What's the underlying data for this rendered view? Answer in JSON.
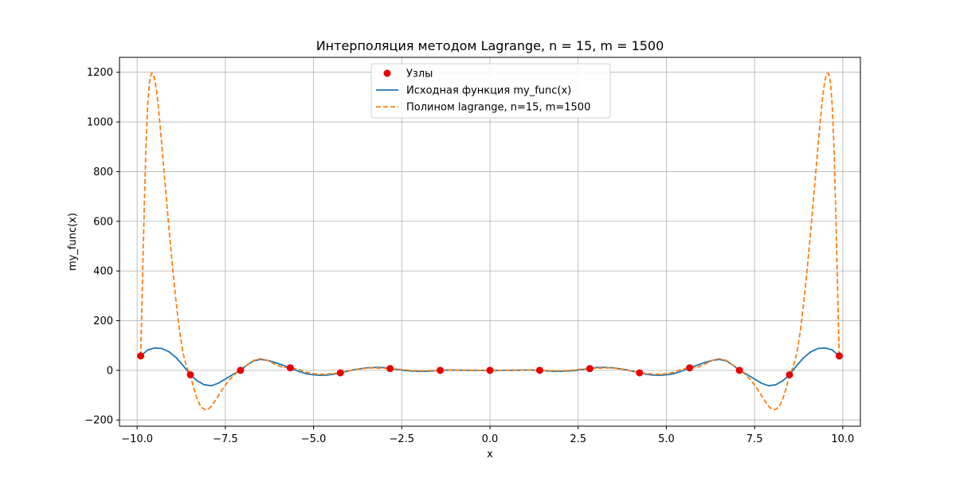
{
  "chart_data": {
    "type": "line",
    "title": "Интерполяция методом Lagrange, n = 15, m = 1500",
    "xlabel": "x",
    "ylabel": "my_func(x)",
    "xlim": [
      -10.5,
      10.5
    ],
    "ylim": [
      -225,
      1260
    ],
    "xticks": [
      -10.0,
      -7.5,
      -5.0,
      -2.5,
      0.0,
      2.5,
      5.0,
      7.5,
      10.0
    ],
    "xtick_labels": [
      "−10.0",
      "−7.5",
      "−5.0",
      "−2.5",
      "0.0",
      "2.5",
      "5.0",
      "7.5",
      "10.0"
    ],
    "yticks": [
      -200,
      0,
      200,
      400,
      600,
      800,
      1000,
      1200
    ],
    "ytick_labels": [
      "−200",
      "0",
      "200",
      "400",
      "600",
      "800",
      "1000",
      "1200"
    ],
    "grid": true,
    "legend_position": "top-center",
    "series": [
      {
        "name": "Узлы",
        "style": "markers",
        "color": "#e60000",
        "x": [
          -9.9,
          -8.49,
          -7.07,
          -5.66,
          -4.24,
          -2.83,
          -1.41,
          0.0,
          1.41,
          2.83,
          4.24,
          5.66,
          7.07,
          8.49,
          9.9
        ],
        "y": [
          58,
          -18,
          0,
          10,
          -10,
          7,
          0,
          0,
          0,
          7,
          -10,
          10,
          0,
          -18,
          58
        ]
      },
      {
        "name": "Исходная функция my_func(x)",
        "style": "solid",
        "color": "#1f77b4",
        "x": [
          -9.9,
          -9.7,
          -9.5,
          -9.3,
          -9.1,
          -8.9,
          -8.7,
          -8.49,
          -8.3,
          -8.1,
          -7.9,
          -7.7,
          -7.5,
          -7.3,
          -7.07,
          -6.9,
          -6.7,
          -6.5,
          -6.3,
          -6.1,
          -5.9,
          -5.66,
          -5.4,
          -5.2,
          -5.0,
          -4.8,
          -4.6,
          -4.4,
          -4.24,
          -4.0,
          -3.8,
          -3.5,
          -3.2,
          -3.0,
          -2.83,
          -2.6,
          -2.4,
          -2.2,
          -2.0,
          -1.8,
          -1.6,
          -1.41,
          -1.2,
          -1.0,
          -0.8,
          -0.5,
          -0.2,
          0.0,
          0.2,
          0.5,
          0.8,
          1.0,
          1.2,
          1.41,
          1.6,
          1.8,
          2.0,
          2.2,
          2.4,
          2.6,
          2.83,
          3.0,
          3.2,
          3.5,
          3.8,
          4.0,
          4.24,
          4.4,
          4.6,
          4.8,
          5.0,
          5.2,
          5.4,
          5.66,
          5.9,
          6.1,
          6.3,
          6.5,
          6.7,
          6.9,
          7.07,
          7.3,
          7.5,
          7.7,
          7.9,
          8.1,
          8.3,
          8.49,
          8.7,
          8.9,
          9.1,
          9.3,
          9.5,
          9.7,
          9.9
        ],
        "y": [
          58,
          82,
          90,
          88,
          75,
          52,
          20,
          -18,
          -42,
          -58,
          -62,
          -52,
          -35,
          -18,
          0,
          20,
          38,
          44,
          40,
          32,
          22,
          10,
          -5,
          -14,
          -18,
          -20,
          -19,
          -15,
          -10,
          -2,
          4,
          10,
          12,
          11,
          7,
          3,
          -1,
          -3,
          -4,
          -4,
          -2,
          0,
          1,
          1,
          0.5,
          0,
          0,
          0,
          0,
          0,
          0.5,
          1,
          1,
          0,
          -2,
          -4,
          -4,
          -3,
          -1,
          3,
          7,
          11,
          12,
          10,
          4,
          -2,
          -10,
          -15,
          -19,
          -20,
          -18,
          -14,
          -5,
          10,
          22,
          32,
          40,
          44,
          38,
          20,
          0,
          -18,
          -35,
          -52,
          -62,
          -58,
          -42,
          -18,
          20,
          52,
          75,
          88,
          90,
          82,
          58
        ]
      },
      {
        "name": "Полином lagrange, n=15, m=1500",
        "style": "dashed",
        "color": "#ff7f0e",
        "x": [
          -9.9,
          -9.85,
          -9.8,
          -9.75,
          -9.7,
          -9.65,
          -9.6,
          -9.55,
          -9.5,
          -9.45,
          -9.4,
          -9.35,
          -9.3,
          -9.2,
          -9.1,
          -9.0,
          -8.9,
          -8.8,
          -8.7,
          -8.6,
          -8.49,
          -8.4,
          -8.3,
          -8.2,
          -8.1,
          -8.0,
          -7.9,
          -7.8,
          -7.6,
          -7.4,
          -7.2,
          -7.07,
          -6.9,
          -6.7,
          -6.5,
          -6.3,
          -6.1,
          -5.9,
          -5.66,
          -5.4,
          -5.2,
          -5.0,
          -4.8,
          -4.6,
          -4.4,
          -4.24,
          -4.0,
          -3.7,
          -3.4,
          -3.1,
          -2.83,
          -2.5,
          -2.2,
          -1.9,
          -1.6,
          -1.41,
          -1.2,
          -0.9,
          -0.6,
          -0.3,
          0.0,
          0.3,
          0.6,
          0.9,
          1.2,
          1.41,
          1.6,
          1.9,
          2.2,
          2.5,
          2.83,
          3.1,
          3.4,
          3.7,
          4.0,
          4.24,
          4.4,
          4.6,
          4.8,
          5.0,
          5.2,
          5.4,
          5.66,
          5.9,
          6.1,
          6.3,
          6.5,
          6.7,
          6.9,
          7.07,
          7.2,
          7.4,
          7.6,
          7.8,
          7.9,
          8.0,
          8.1,
          8.2,
          8.3,
          8.4,
          8.49,
          8.6,
          8.7,
          8.8,
          8.9,
          9.0,
          9.1,
          9.2,
          9.3,
          9.35,
          9.4,
          9.45,
          9.5,
          9.55,
          9.6,
          9.65,
          9.7,
          9.75,
          9.8,
          9.85,
          9.9
        ],
        "y": [
          58,
          350,
          650,
          900,
          1070,
          1160,
          1195,
          1195,
          1170,
          1125,
          1060,
          985,
          905,
          740,
          575,
          420,
          280,
          160,
          70,
          15,
          -18,
          -70,
          -115,
          -145,
          -157,
          -158,
          -145,
          -125,
          -80,
          -40,
          -12,
          0,
          20,
          40,
          47,
          40,
          25,
          13,
          10,
          3,
          -8,
          -14,
          -16,
          -15,
          -12,
          -10,
          -2,
          6,
          10,
          9,
          7,
          3,
          -1,
          -2,
          -1,
          0,
          1,
          1,
          0.5,
          0,
          0,
          0,
          0.5,
          1,
          1,
          0,
          -1,
          -2,
          -1,
          3,
          7,
          9,
          10,
          6,
          -2,
          -10,
          -12,
          -15,
          -16,
          -14,
          -8,
          3,
          10,
          13,
          25,
          40,
          47,
          40,
          20,
          0,
          -12,
          -40,
          -80,
          -125,
          -145,
          -158,
          -157,
          -145,
          -115,
          -70,
          -18,
          15,
          70,
          160,
          280,
          420,
          575,
          740,
          905,
          985,
          1060,
          1125,
          1170,
          1195,
          1195,
          1160,
          1070,
          900,
          650,
          350,
          58
        ]
      }
    ]
  }
}
